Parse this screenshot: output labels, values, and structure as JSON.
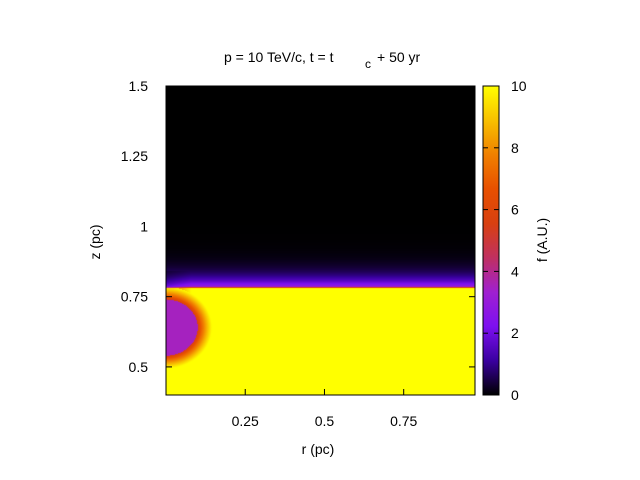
{
  "chart_data": {
    "type": "heatmap",
    "title_main": "p = 10 TeV/c, t = t",
    "title_sub": "c",
    "title_tail": " + 50 yr",
    "xlabel": "r (pc)",
    "ylabel": "z (pc)",
    "colorbar_label": "f (A.U.)",
    "xlim": [
      0.0,
      0.975
    ],
    "ylim": [
      0.4,
      1.5
    ],
    "clim": [
      0,
      10
    ],
    "x_ticks": [
      {
        "value": 0.25,
        "label": "0.25"
      },
      {
        "value": 0.5,
        "label": "0.5"
      },
      {
        "value": 0.75,
        "label": "0.75"
      }
    ],
    "y_ticks": [
      {
        "value": 0.5,
        "label": "0.5"
      },
      {
        "value": 0.75,
        "label": "0.75"
      },
      {
        "value": 1.0,
        "label": "1"
      },
      {
        "value": 1.25,
        "label": "1.25"
      },
      {
        "value": 1.5,
        "label": "1.5"
      }
    ],
    "colorbar_ticks": [
      {
        "value": 0,
        "label": "0"
      },
      {
        "value": 2,
        "label": "2"
      },
      {
        "value": 4,
        "label": "4"
      },
      {
        "value": 6,
        "label": "6"
      },
      {
        "value": 8,
        "label": "8"
      },
      {
        "value": 10,
        "label": "10"
      }
    ],
    "colormap": [
      "#000000",
      "#3a00a0",
      "#7d10f0",
      "#a020d0",
      "#c03060",
      "#d84010",
      "#e85000",
      "#f08000",
      "#f8c000",
      "#ffff00"
    ],
    "field": {
      "background_value": 0,
      "interior_value": 10,
      "front_z": 0.78,
      "front_diffusion_width": 0.06,
      "sphere_center": [
        0.0,
        0.64
      ],
      "sphere_radius": 0.1,
      "sphere_value": 3.5
    }
  }
}
